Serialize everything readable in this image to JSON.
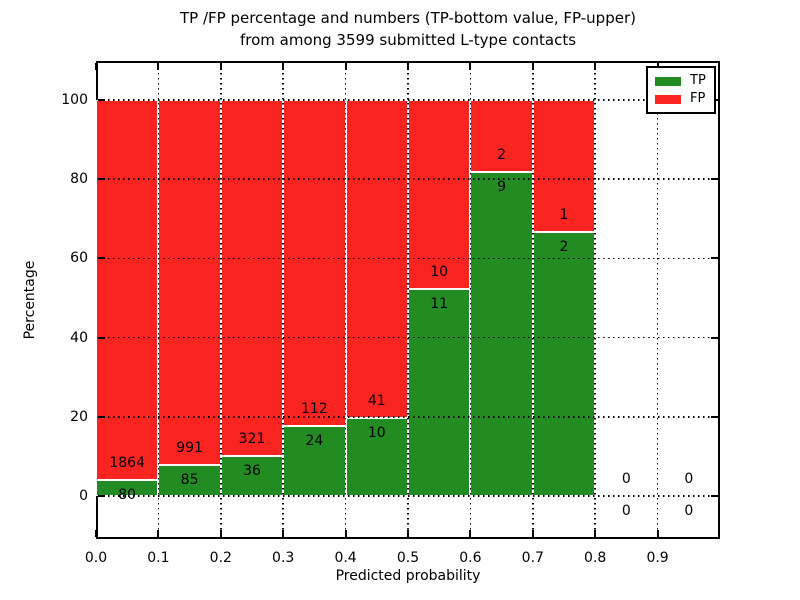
{
  "title": {
    "line1": "TP /FP percentage and numbers (TP-bottom value, FP-upper)",
    "line2": "from among 3599 submitted L-type contacts"
  },
  "axes": {
    "xlabel": "Predicted probability",
    "ylabel": "Percentage",
    "x_tick_labels": [
      "0.0",
      "0.1",
      "0.2",
      "0.3",
      "0.4",
      "0.5",
      "0.6",
      "0.7",
      "0.8",
      "0.9"
    ],
    "y_tick_labels": [
      "0",
      "20",
      "40",
      "60",
      "80",
      "100"
    ],
    "y_tick_values": [
      0,
      20,
      40,
      60,
      80,
      100
    ]
  },
  "legend": {
    "items": [
      {
        "label": "TP",
        "color": "#228b22"
      },
      {
        "label": "FP",
        "color": "#f92420"
      }
    ]
  },
  "colors": {
    "tp": "#228b22",
    "fp": "#f92420",
    "grid": "#000000"
  },
  "chart_data": {
    "type": "bar",
    "stacked": true,
    "title": "TP /FP percentage and numbers (TP-bottom value, FP-upper) from among 3599 submitted L-type contacts",
    "xlabel": "Predicted probability",
    "ylabel": "Percentage",
    "total_submitted": 3599,
    "x_bins": [
      [
        0.0,
        0.1
      ],
      [
        0.1,
        0.2
      ],
      [
        0.2,
        0.3
      ],
      [
        0.3,
        0.4
      ],
      [
        0.4,
        0.5
      ],
      [
        0.5,
        0.6
      ],
      [
        0.6,
        0.7
      ],
      [
        0.7,
        0.8
      ],
      [
        0.8,
        0.9
      ],
      [
        0.9,
        1.0
      ]
    ],
    "series": [
      {
        "name": "TP",
        "color": "#228b22",
        "counts": [
          80,
          85,
          36,
          24,
          10,
          11,
          9,
          2,
          0,
          0
        ],
        "pct": [
          4.12,
          7.9,
          10.08,
          17.65,
          19.61,
          52.38,
          81.82,
          66.67,
          0,
          0
        ]
      },
      {
        "name": "FP",
        "color": "#f92420",
        "counts": [
          1864,
          991,
          321,
          112,
          41,
          10,
          2,
          1,
          0,
          0
        ],
        "pct": [
          95.88,
          92.1,
          89.92,
          82.35,
          80.39,
          47.62,
          18.18,
          33.33,
          0,
          0
        ]
      }
    ],
    "xlim": [
      0.0,
      1.0
    ],
    "ylim": [
      -11,
      110
    ],
    "grid": true,
    "grid_style": "dotted",
    "legend_position": "upper right"
  }
}
